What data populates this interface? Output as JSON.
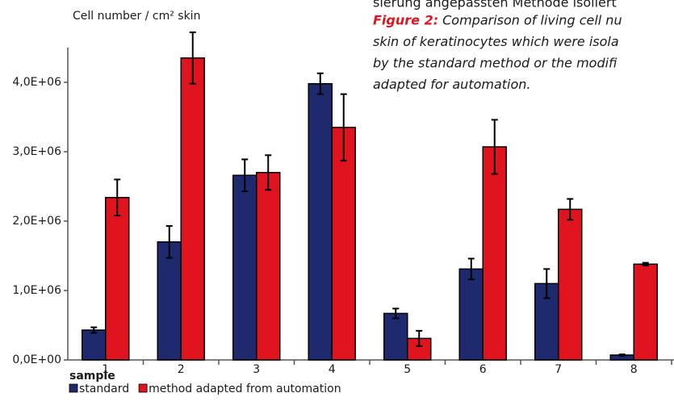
{
  "chart_data": {
    "type": "bar",
    "y_label": "Cell number / cm² skin",
    "x_label": "sample",
    "caption": {
      "top_line": "sierung angepassten Methode isoliert",
      "figure_label": "Figure 2:",
      "lines": [
        "Comparison of living cell nu",
        "skin of keratinocytes which were isola",
        "by the standard method or the modifi",
        "adapted for automation."
      ]
    },
    "categories": [
      "1",
      "2",
      "3",
      "4",
      "5",
      "6",
      "7",
      "8"
    ],
    "series": [
      {
        "name": "standard",
        "color": "#1f2a6e",
        "values": [
          430000,
          1700000,
          2660000,
          3980000,
          670000,
          1310000,
          1100000,
          70000
        ],
        "errors": [
          40000,
          230000,
          230000,
          150000,
          70000,
          150000,
          210000,
          10000
        ]
      },
      {
        "name": "method adapted from automation",
        "color": "#e0141e",
        "values": [
          2340000,
          4350000,
          2700000,
          3350000,
          310000,
          3070000,
          2170000,
          1380000
        ],
        "errors": [
          260000,
          370000,
          250000,
          480000,
          110000,
          390000,
          150000,
          20000
        ]
      }
    ],
    "ylim": [
      0,
      4500000
    ],
    "yticks": [
      {
        "value": 0,
        "label": "0,0E+00"
      },
      {
        "value": 1000000,
        "label": "1,0E+06"
      },
      {
        "value": 2000000,
        "label": "2,0E+06"
      },
      {
        "value": 3000000,
        "label": "3,0E+06"
      },
      {
        "value": 4000000,
        "label": "4,0E+06"
      }
    ],
    "grid": false
  }
}
